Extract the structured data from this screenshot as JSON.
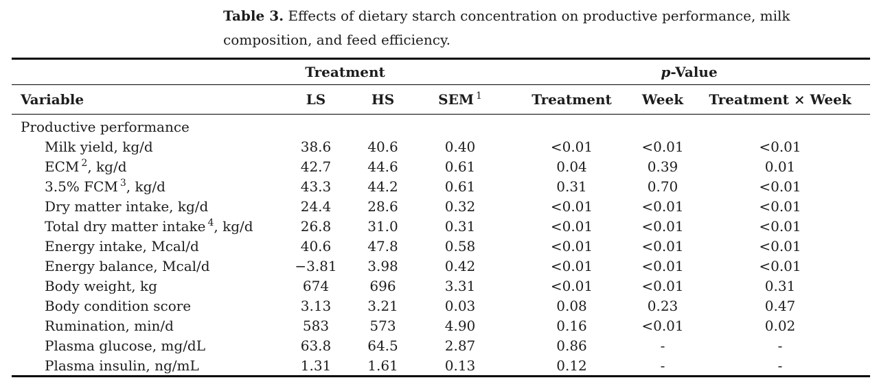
{
  "caption": {
    "label": "Table 3.",
    "text": "Effects of dietary starch concentration on productive performance, milk composition, and feed efficiency."
  },
  "headers": {
    "treatment_group": "Treatment",
    "p_value_italic": "p",
    "p_value_rest": "-Value"
  },
  "columns": {
    "variable": "Variable",
    "ls": "LS",
    "hs": "HS",
    "sem": "SEM",
    "sem_sup": "1",
    "p_treatment": "Treatment",
    "week": "Week",
    "treatment_week": "Treatment × Week"
  },
  "rows": [
    {
      "type": "section",
      "label": "Productive performance"
    },
    {
      "type": "data",
      "label": "Milk yield, kg/d",
      "sup": "",
      "suffix": "",
      "values": [
        "38.6",
        "40.6",
        "0.40",
        "<0.01",
        "<0.01",
        "<0.01"
      ]
    },
    {
      "type": "data",
      "label": "ECM",
      "sup": "2",
      "suffix": ", kg/d",
      "values": [
        "42.7",
        "44.6",
        "0.61",
        "0.04",
        "0.39",
        "0.01"
      ]
    },
    {
      "type": "data",
      "label": "3.5% FCM",
      "sup": "3",
      "suffix": ", kg/d",
      "values": [
        "43.3",
        "44.2",
        "0.61",
        "0.31",
        "0.70",
        "<0.01"
      ]
    },
    {
      "type": "data",
      "label": "Dry matter intake, kg/d",
      "sup": "",
      "suffix": "",
      "values": [
        "24.4",
        "28.6",
        "0.32",
        "<0.01",
        "<0.01",
        "<0.01"
      ]
    },
    {
      "type": "data",
      "label": "Total dry matter intake",
      "sup": "4",
      "suffix": ", kg/d",
      "values": [
        "26.8",
        "31.0",
        "0.31",
        "<0.01",
        "<0.01",
        "<0.01"
      ]
    },
    {
      "type": "data",
      "label": "Energy intake, Mcal/d",
      "sup": "",
      "suffix": "",
      "values": [
        "40.6",
        "47.8",
        "0.58",
        "<0.01",
        "<0.01",
        "<0.01"
      ]
    },
    {
      "type": "data",
      "label": "Energy balance, Mcal/d",
      "sup": "",
      "suffix": "",
      "values": [
        "−3.81",
        "3.98",
        "0.42",
        "<0.01",
        "<0.01",
        "<0.01"
      ]
    },
    {
      "type": "data",
      "label": "Body weight, kg",
      "sup": "",
      "suffix": "",
      "values": [
        "674",
        "696",
        "3.31",
        "<0.01",
        "<0.01",
        "0.31"
      ]
    },
    {
      "type": "data",
      "label": "Body condition score",
      "sup": "",
      "suffix": "",
      "values": [
        "3.13",
        "3.21",
        "0.03",
        "0.08",
        "0.23",
        "0.47"
      ]
    },
    {
      "type": "data",
      "label": "Rumination, min/d",
      "sup": "",
      "suffix": "",
      "values": [
        "583",
        "573",
        "4.90",
        "0.16",
        "<0.01",
        "0.02"
      ]
    },
    {
      "type": "data",
      "label": "Plasma glucose, mg/dL",
      "sup": "",
      "suffix": "",
      "values": [
        "63.8",
        "64.5",
        "2.87",
        "0.86",
        "-",
        "-"
      ]
    },
    {
      "type": "data",
      "label": "Plasma insulin, ng/mL",
      "sup": "",
      "suffix": "",
      "values": [
        "1.31",
        "1.61",
        "0.13",
        "0.12",
        "-",
        "-"
      ]
    }
  ],
  "colors": {
    "text": "#1c1c1c",
    "rule": "#000000",
    "background": "#ffffff"
  }
}
